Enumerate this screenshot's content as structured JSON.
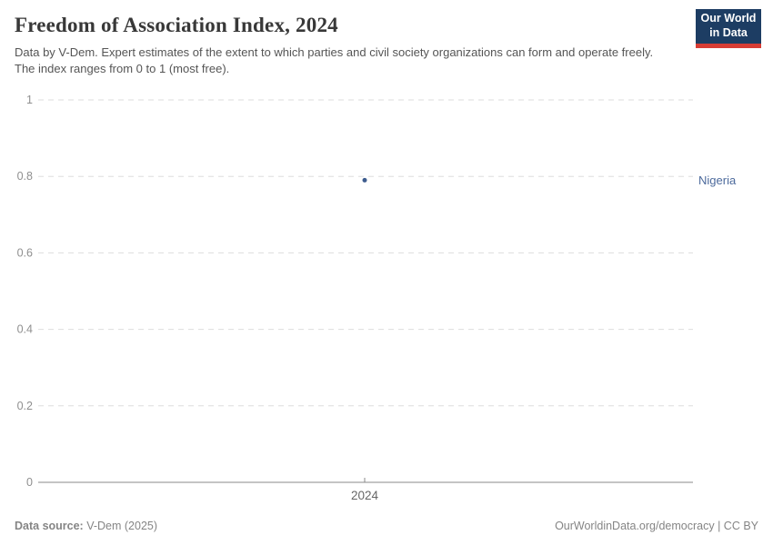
{
  "logo": {
    "line1": "Our World",
    "line2": "in Data"
  },
  "chart_data": {
    "type": "scatter",
    "title": "Freedom of Association Index, 2024",
    "subtitle": "Data by V-Dem. Expert estimates of the extent to which parties and civil society organizations can form and operate freely. The index ranges from 0 to 1 (most free).",
    "x": [
      2024
    ],
    "xtick_labels": [
      "2024"
    ],
    "xlabel": "",
    "ylabel": "",
    "ylim": [
      0,
      1
    ],
    "yticks": [
      0,
      0.2,
      0.4,
      0.6,
      0.8,
      1
    ],
    "ytick_labels": [
      "0",
      "0.2",
      "0.4",
      "0.6",
      "0.8",
      "1"
    ],
    "grid": "horizontal-dashed",
    "legend_position": "right-entity-label",
    "series": [
      {
        "name": "Nigeria",
        "x": [
          2024
        ],
        "values": [
          0.79
        ],
        "point_color": "#3d5c8e",
        "label_color": "#4c6a9c"
      }
    ]
  },
  "footer": {
    "source_label": "Data source:",
    "source_value": "V-Dem (2025)",
    "credit": "OurWorldinData.org/democracy | CC BY"
  },
  "colors": {
    "logo_navy": "#1d3d63",
    "logo_red": "#d73c34",
    "gridline": "#dddddd",
    "axis_line": "#8a8a8a",
    "axis_tick_label": "#8f8f8f",
    "x_tick_label": "#666666",
    "footer_text": "#858585",
    "title_text": "#383838",
    "subtitle_text": "#555555"
  }
}
